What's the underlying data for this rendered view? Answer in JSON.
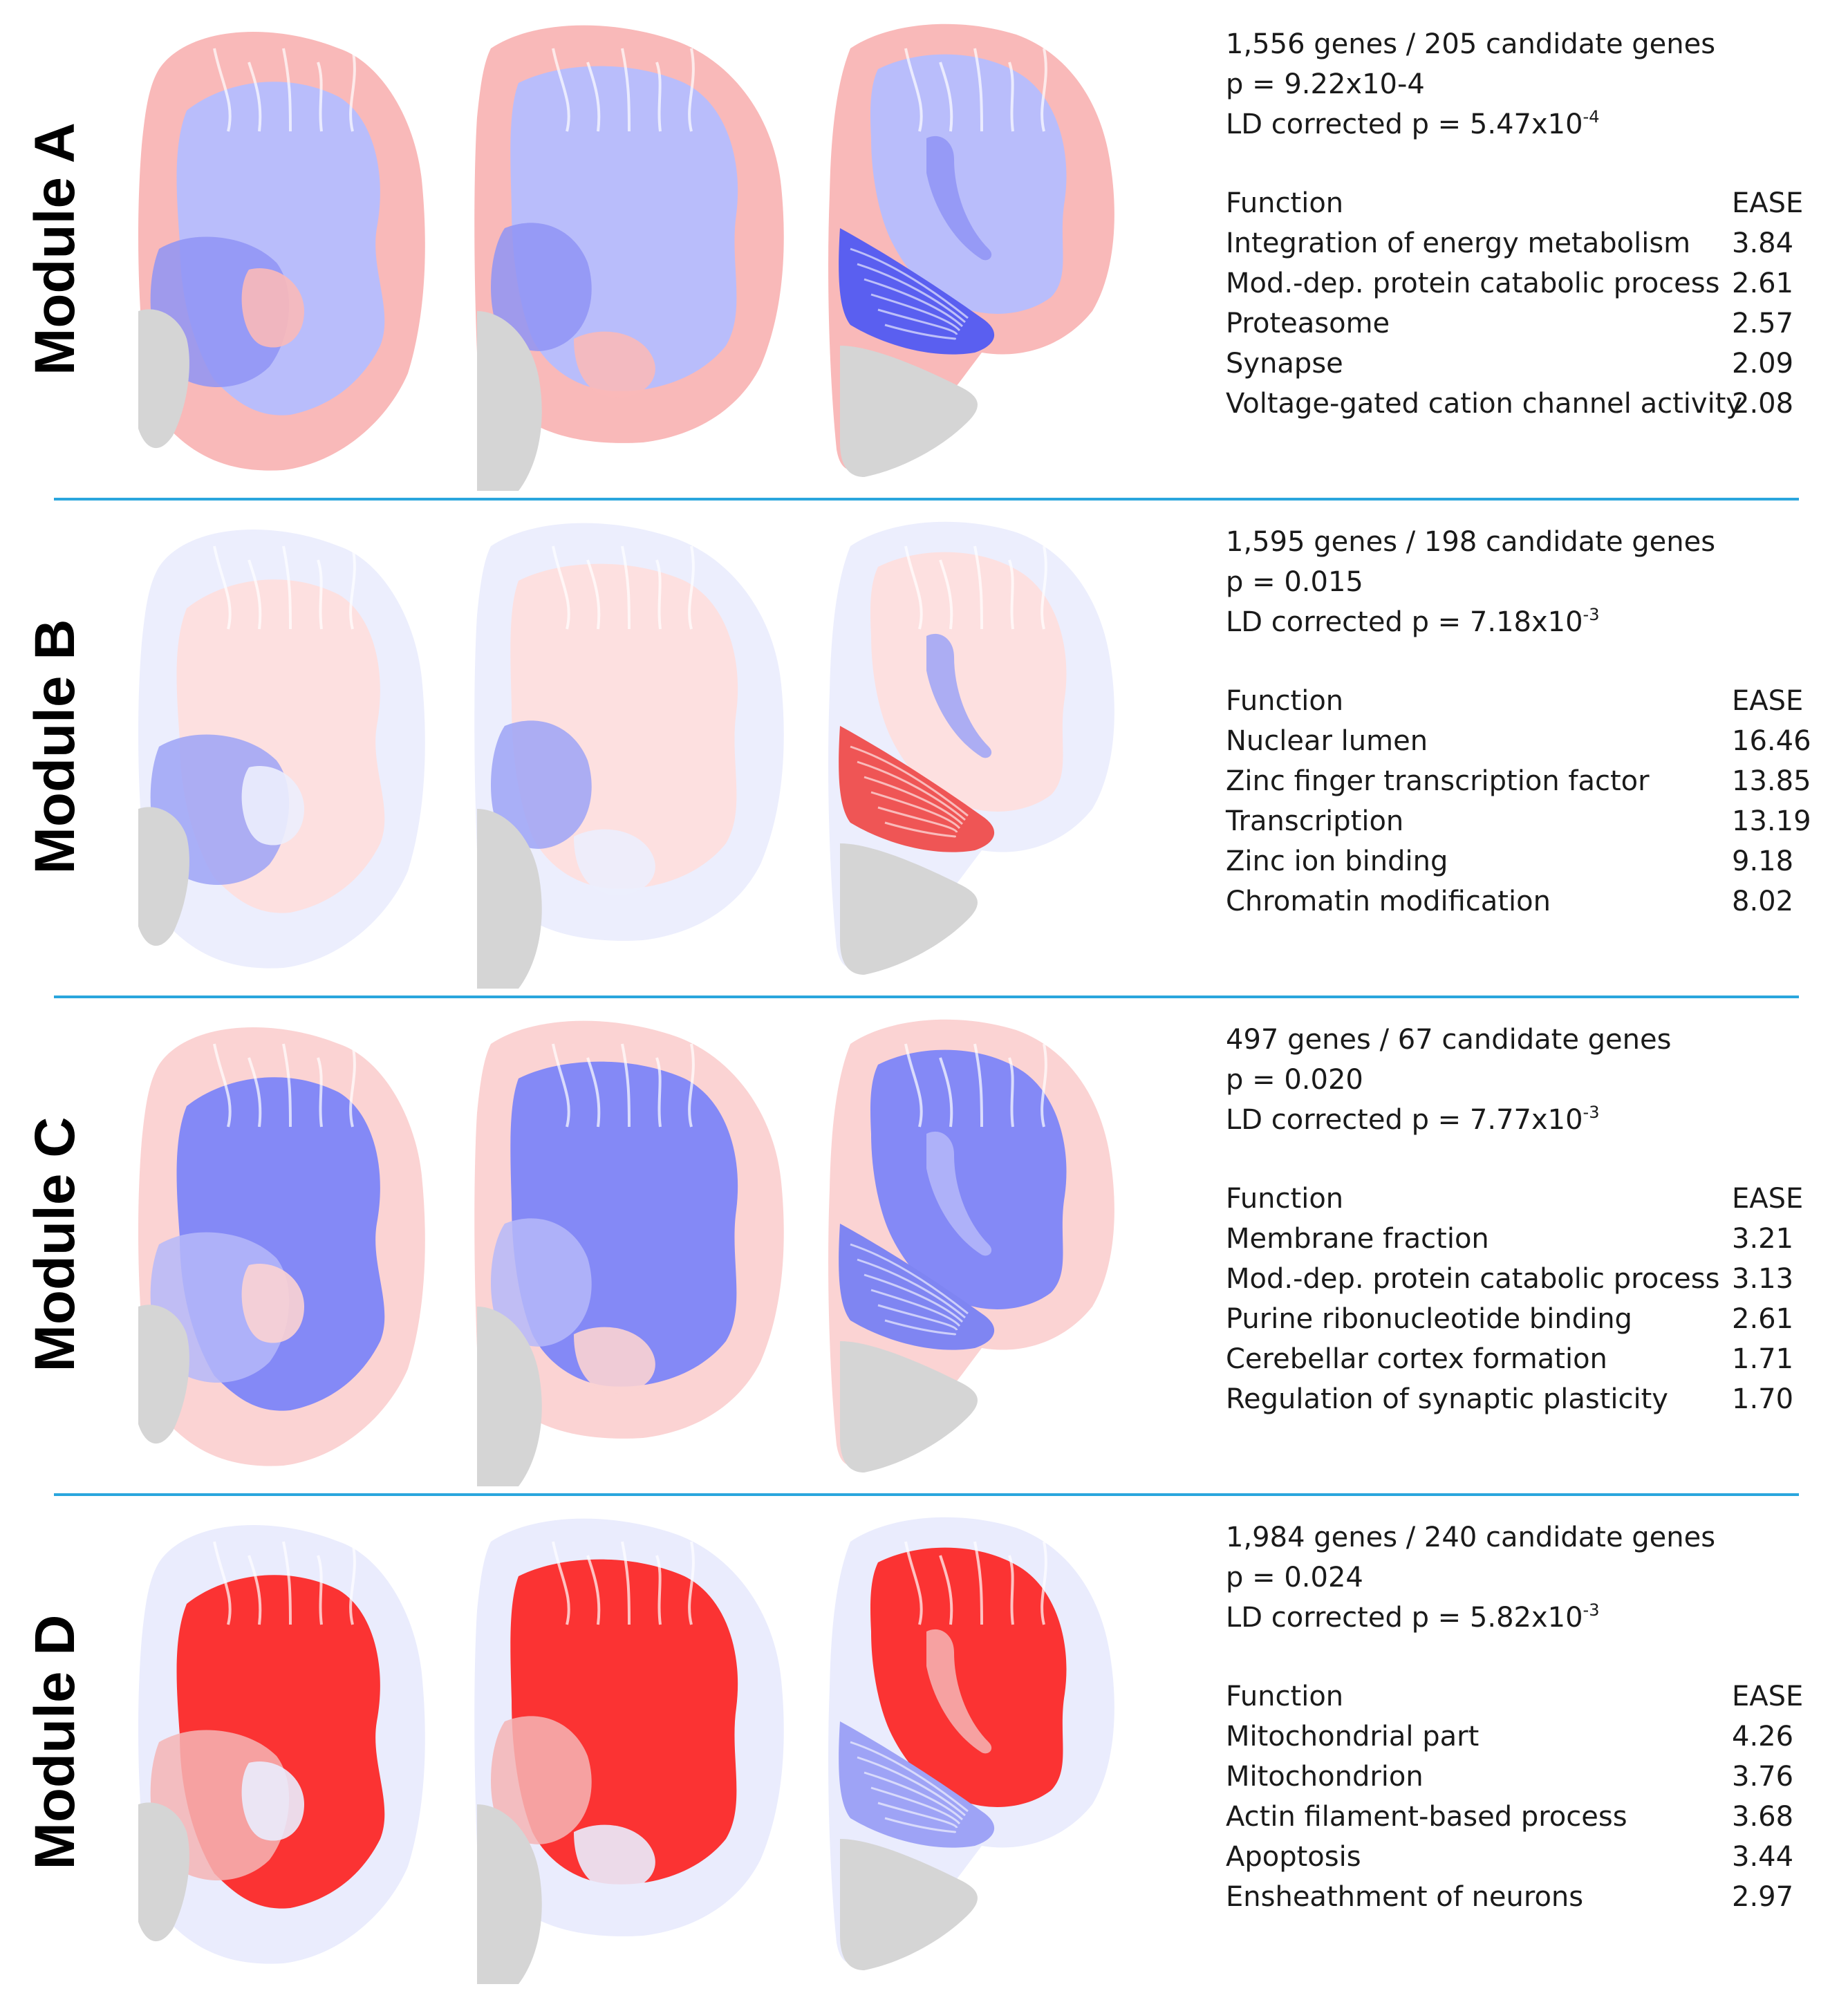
{
  "modules": [
    {
      "label": "Module A",
      "genes": "1,556 genes / 205 candidate genes",
      "p": "p = 9.22x10-4",
      "ld_prefix": "LD corrected p = 5.47x10",
      "ld_exp": "-4",
      "function_header": "Function",
      "score_header": "EASE",
      "functions": [
        {
          "name": "Integration of energy metabolism",
          "score": "3.84"
        },
        {
          "name": "Mod.-dep. protein catabolic process",
          "score": "2.61"
        },
        {
          "name": "Proteasome",
          "score": "2.57"
        },
        {
          "name": "Synapse",
          "score": "2.09"
        },
        {
          "name": "Voltage-gated cation channel activity",
          "score": "2.08"
        }
      ],
      "colors": {
        "cortex": "#f9b9b9",
        "white_matter": "#b9bdfb",
        "deep": "#8f94f5",
        "cerebellum": "#5a5ff0",
        "gray": "#d5d5d5"
      }
    },
    {
      "label": "Module B",
      "genes": "1,595 genes / 198 candidate genes",
      "p": "p = 0.015",
      "ld_prefix": "LD corrected p = 7.18x10",
      "ld_exp": "-3",
      "function_header": "Function",
      "score_header": "EASE",
      "functions": [
        {
          "name": "Nuclear lumen",
          "score": "16.46"
        },
        {
          "name": "Zinc finger transcription factor",
          "score": "13.85"
        },
        {
          "name": "Transcription",
          "score": "13.19"
        },
        {
          "name": "Zinc ion binding",
          "score": "9.18"
        },
        {
          "name": "Chromatin modification",
          "score": "8.02"
        }
      ],
      "colors": {
        "cortex": "#eceefd",
        "white_matter": "#fde0e0",
        "deep": "#9ea3f6",
        "cerebellum": "#ef5555",
        "gray": "#d5d5d5"
      }
    },
    {
      "label": "Module C",
      "genes": "497 genes / 67 candidate genes",
      "p": "p = 0.020",
      "ld_prefix": "LD corrected p = 7.77x10",
      "ld_exp": "-3",
      "function_header": "Function",
      "score_header": "EASE",
      "functions": [
        {
          "name": "Membrane fraction",
          "score": "3.21"
        },
        {
          "name": "Mod.-dep. protein catabolic process",
          "score": "3.13"
        },
        {
          "name": "Purine ribonucleotide binding",
          "score": "2.61"
        },
        {
          "name": "Cerebellar cortex formation",
          "score": "1.71"
        },
        {
          "name": "Regulation of synaptic plasticity",
          "score": "1.70"
        }
      ],
      "colors": {
        "cortex": "#fbd3d3",
        "white_matter": "#8489f6",
        "deep": "#b5b9f9",
        "cerebellum": "#7f85f2",
        "gray": "#d5d5d5"
      }
    },
    {
      "label": "Module D",
      "genes": "1,984 genes / 240 candidate genes",
      "p": "p = 0.024",
      "ld_prefix": "LD corrected p = 5.82x10",
      "ld_exp": "-3",
      "function_header": "Function",
      "score_header": "EASE",
      "functions": [
        {
          "name": "Mitochondrial part",
          "score": "4.26"
        },
        {
          "name": "Mitochondrion",
          "score": "3.76"
        },
        {
          "name": "Actin filament-based process",
          "score": "3.68"
        },
        {
          "name": "Apoptosis",
          "score": "3.44"
        },
        {
          "name": "Ensheathment of neurons",
          "score": "2.97"
        }
      ],
      "colors": {
        "cortex": "#eaecfd",
        "white_matter": "#fb3333",
        "deep": "#f5b5b5",
        "cerebellum": "#9ea3f6",
        "gray": "#d5d5d5"
      }
    }
  ],
  "separator_color": "#2aa6dd"
}
